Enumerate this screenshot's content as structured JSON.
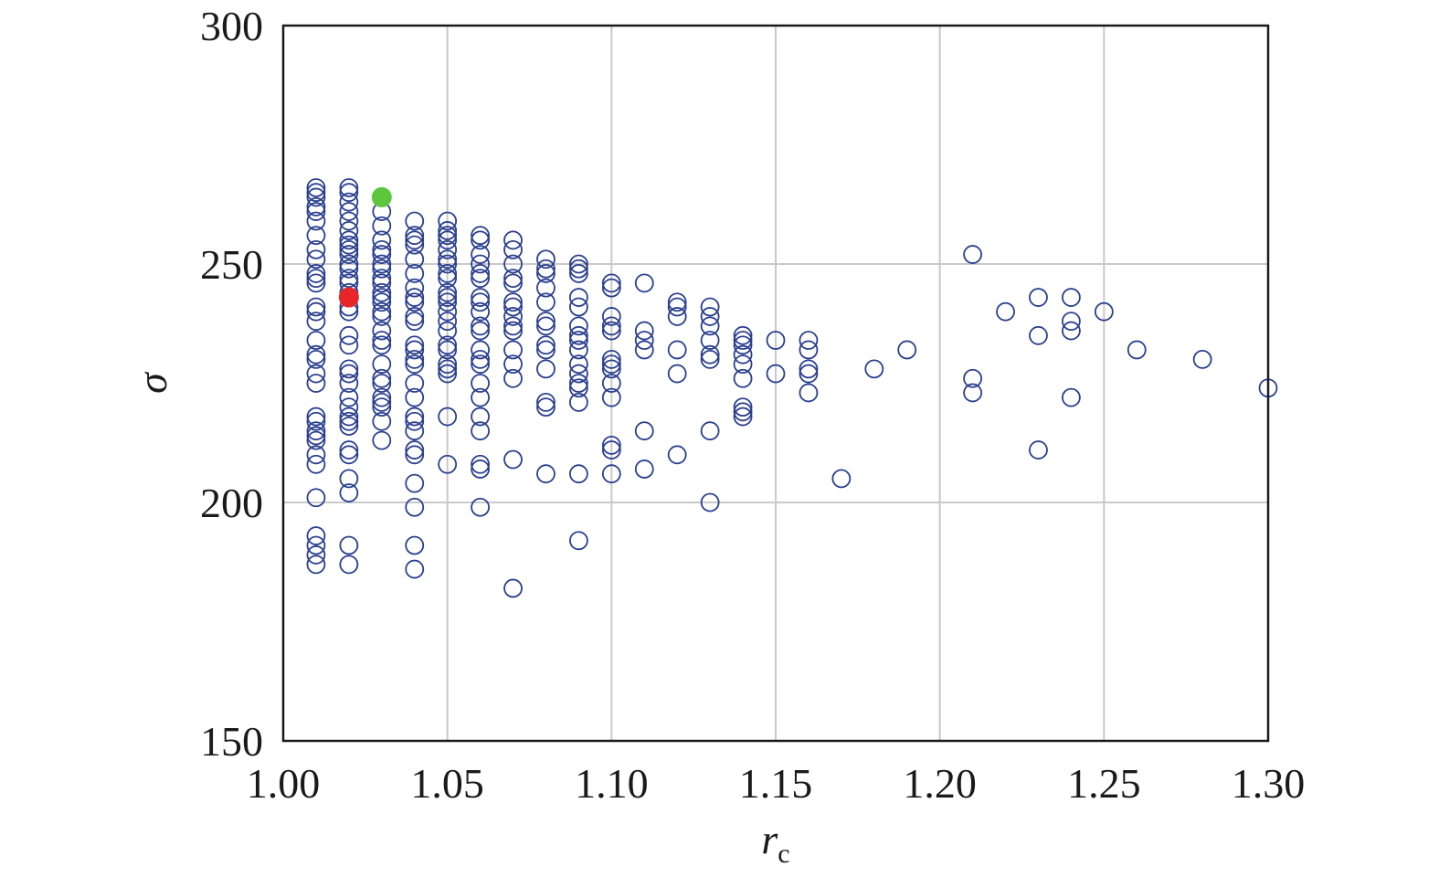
{
  "chart_data": {
    "type": "scatter",
    "title": "",
    "xlabel": "r",
    "xlabel_subscript": "c",
    "ylabel": "σ",
    "xlim": [
      1.0,
      1.3
    ],
    "ylim": [
      150,
      300
    ],
    "x_ticks": [
      "1.00",
      "1.05",
      "1.10",
      "1.15",
      "1.20",
      "1.25",
      "1.30"
    ],
    "y_ticks": [
      "150",
      "200",
      "250",
      "300"
    ],
    "grid": true,
    "legend": "none",
    "colors": {
      "points": "#2a3f8f",
      "highlight_red": "#e8262a",
      "highlight_green": "#5cc63c",
      "grid": "#c9c9c9",
      "axis": "#1a1a1a"
    },
    "series": [
      {
        "points": [
          [
            1.01,
            266
          ],
          [
            1.01,
            265
          ],
          [
            1.01,
            264
          ],
          [
            1.01,
            262
          ],
          [
            1.01,
            261
          ],
          [
            1.01,
            259
          ],
          [
            1.01,
            256
          ],
          [
            1.01,
            253
          ],
          [
            1.01,
            251
          ],
          [
            1.01,
            248
          ],
          [
            1.01,
            247
          ],
          [
            1.01,
            246
          ],
          [
            1.01,
            241
          ],
          [
            1.01,
            240
          ],
          [
            1.01,
            238
          ],
          [
            1.01,
            234
          ],
          [
            1.01,
            231
          ],
          [
            1.01,
            230
          ],
          [
            1.01,
            227
          ],
          [
            1.01,
            225
          ],
          [
            1.01,
            218
          ],
          [
            1.01,
            217
          ],
          [
            1.01,
            215
          ],
          [
            1.01,
            214
          ],
          [
            1.01,
            213
          ],
          [
            1.01,
            210
          ],
          [
            1.01,
            208
          ],
          [
            1.01,
            201
          ],
          [
            1.01,
            193
          ],
          [
            1.01,
            191
          ],
          [
            1.01,
            189
          ],
          [
            1.01,
            187
          ],
          [
            1.02,
            266
          ],
          [
            1.02,
            265
          ],
          [
            1.02,
            263
          ],
          [
            1.02,
            261
          ],
          [
            1.02,
            259
          ],
          [
            1.02,
            257
          ],
          [
            1.02,
            255
          ],
          [
            1.02,
            254
          ],
          [
            1.02,
            253
          ],
          [
            1.02,
            252
          ],
          [
            1.02,
            250
          ],
          [
            1.02,
            249
          ],
          [
            1.02,
            247
          ],
          [
            1.02,
            246
          ],
          [
            1.02,
            244
          ],
          [
            1.02,
            241
          ],
          [
            1.02,
            240
          ],
          [
            1.02,
            235
          ],
          [
            1.02,
            233
          ],
          [
            1.02,
            228
          ],
          [
            1.02,
            227
          ],
          [
            1.02,
            225
          ],
          [
            1.02,
            222
          ],
          [
            1.02,
            220
          ],
          [
            1.02,
            218
          ],
          [
            1.02,
            217
          ],
          [
            1.02,
            216
          ],
          [
            1.02,
            211
          ],
          [
            1.02,
            210
          ],
          [
            1.02,
            205
          ],
          [
            1.02,
            202
          ],
          [
            1.02,
            191
          ],
          [
            1.02,
            187
          ],
          [
            1.03,
            261
          ],
          [
            1.03,
            258
          ],
          [
            1.03,
            255
          ],
          [
            1.03,
            253
          ],
          [
            1.03,
            252
          ],
          [
            1.03,
            250
          ],
          [
            1.03,
            249
          ],
          [
            1.03,
            247
          ],
          [
            1.03,
            246
          ],
          [
            1.03,
            244
          ],
          [
            1.03,
            243
          ],
          [
            1.03,
            242
          ],
          [
            1.03,
            240
          ],
          [
            1.03,
            239
          ],
          [
            1.03,
            236
          ],
          [
            1.03,
            234
          ],
          [
            1.03,
            233
          ],
          [
            1.03,
            229
          ],
          [
            1.03,
            226
          ],
          [
            1.03,
            225
          ],
          [
            1.03,
            222
          ],
          [
            1.03,
            221
          ],
          [
            1.03,
            220
          ],
          [
            1.03,
            217
          ],
          [
            1.03,
            213
          ],
          [
            1.04,
            259
          ],
          [
            1.04,
            256
          ],
          [
            1.04,
            255
          ],
          [
            1.04,
            254
          ],
          [
            1.04,
            251
          ],
          [
            1.04,
            248
          ],
          [
            1.04,
            245
          ],
          [
            1.04,
            243
          ],
          [
            1.04,
            242
          ],
          [
            1.04,
            239
          ],
          [
            1.04,
            238
          ],
          [
            1.04,
            233
          ],
          [
            1.04,
            232
          ],
          [
            1.04,
            230
          ],
          [
            1.04,
            229
          ],
          [
            1.04,
            225
          ],
          [
            1.04,
            222
          ],
          [
            1.04,
            218
          ],
          [
            1.04,
            217
          ],
          [
            1.04,
            215
          ],
          [
            1.04,
            211
          ],
          [
            1.04,
            210
          ],
          [
            1.04,
            204
          ],
          [
            1.04,
            199
          ],
          [
            1.04,
            191
          ],
          [
            1.04,
            186
          ],
          [
            1.05,
            259
          ],
          [
            1.05,
            257
          ],
          [
            1.05,
            256
          ],
          [
            1.05,
            255
          ],
          [
            1.05,
            253
          ],
          [
            1.05,
            251
          ],
          [
            1.05,
            250
          ],
          [
            1.05,
            248
          ],
          [
            1.05,
            247
          ],
          [
            1.05,
            244
          ],
          [
            1.05,
            243
          ],
          [
            1.05,
            242
          ],
          [
            1.05,
            240
          ],
          [
            1.05,
            238
          ],
          [
            1.05,
            236
          ],
          [
            1.05,
            233
          ],
          [
            1.05,
            232
          ],
          [
            1.05,
            229
          ],
          [
            1.05,
            228
          ],
          [
            1.05,
            227
          ],
          [
            1.05,
            218
          ],
          [
            1.05,
            208
          ],
          [
            1.06,
            256
          ],
          [
            1.06,
            255
          ],
          [
            1.06,
            252
          ],
          [
            1.06,
            250
          ],
          [
            1.06,
            248
          ],
          [
            1.06,
            247
          ],
          [
            1.06,
            243
          ],
          [
            1.06,
            242
          ],
          [
            1.06,
            240
          ],
          [
            1.06,
            237
          ],
          [
            1.06,
            236
          ],
          [
            1.06,
            232
          ],
          [
            1.06,
            230
          ],
          [
            1.06,
            229
          ],
          [
            1.06,
            225
          ],
          [
            1.06,
            222
          ],
          [
            1.06,
            218
          ],
          [
            1.06,
            215
          ],
          [
            1.06,
            208
          ],
          [
            1.06,
            207
          ],
          [
            1.06,
            199
          ],
          [
            1.07,
            255
          ],
          [
            1.07,
            253
          ],
          [
            1.07,
            250
          ],
          [
            1.07,
            247
          ],
          [
            1.07,
            246
          ],
          [
            1.07,
            242
          ],
          [
            1.07,
            241
          ],
          [
            1.07,
            239
          ],
          [
            1.07,
            237
          ],
          [
            1.07,
            236
          ],
          [
            1.07,
            232
          ],
          [
            1.07,
            229
          ],
          [
            1.07,
            226
          ],
          [
            1.07,
            209
          ],
          [
            1.07,
            182
          ],
          [
            1.08,
            251
          ],
          [
            1.08,
            249
          ],
          [
            1.08,
            248
          ],
          [
            1.08,
            245
          ],
          [
            1.08,
            242
          ],
          [
            1.08,
            238
          ],
          [
            1.08,
            237
          ],
          [
            1.08,
            233
          ],
          [
            1.08,
            232
          ],
          [
            1.08,
            228
          ],
          [
            1.08,
            221
          ],
          [
            1.08,
            220
          ],
          [
            1.08,
            206
          ],
          [
            1.09,
            250
          ],
          [
            1.09,
            249
          ],
          [
            1.09,
            248
          ],
          [
            1.09,
            243
          ],
          [
            1.09,
            241
          ],
          [
            1.09,
            237
          ],
          [
            1.09,
            235
          ],
          [
            1.09,
            234
          ],
          [
            1.09,
            232
          ],
          [
            1.09,
            229
          ],
          [
            1.09,
            227
          ],
          [
            1.09,
            225
          ],
          [
            1.09,
            224
          ],
          [
            1.09,
            221
          ],
          [
            1.09,
            206
          ],
          [
            1.09,
            192
          ],
          [
            1.1,
            246
          ],
          [
            1.1,
            245
          ],
          [
            1.1,
            239
          ],
          [
            1.1,
            237
          ],
          [
            1.1,
            236
          ],
          [
            1.1,
            230
          ],
          [
            1.1,
            229
          ],
          [
            1.1,
            228
          ],
          [
            1.1,
            225
          ],
          [
            1.1,
            222
          ],
          [
            1.1,
            212
          ],
          [
            1.1,
            211
          ],
          [
            1.1,
            206
          ],
          [
            1.11,
            246
          ],
          [
            1.11,
            236
          ],
          [
            1.11,
            234
          ],
          [
            1.11,
            232
          ],
          [
            1.11,
            215
          ],
          [
            1.11,
            207
          ],
          [
            1.12,
            242
          ],
          [
            1.12,
            241
          ],
          [
            1.12,
            239
          ],
          [
            1.12,
            232
          ],
          [
            1.12,
            227
          ],
          [
            1.12,
            210
          ],
          [
            1.13,
            241
          ],
          [
            1.13,
            239
          ],
          [
            1.13,
            237
          ],
          [
            1.13,
            234
          ],
          [
            1.13,
            231
          ],
          [
            1.13,
            230
          ],
          [
            1.13,
            215
          ],
          [
            1.13,
            200
          ],
          [
            1.14,
            235
          ],
          [
            1.14,
            234
          ],
          [
            1.14,
            233
          ],
          [
            1.14,
            231
          ],
          [
            1.14,
            229
          ],
          [
            1.14,
            226
          ],
          [
            1.14,
            220
          ],
          [
            1.14,
            219
          ],
          [
            1.14,
            218
          ],
          [
            1.15,
            234
          ],
          [
            1.15,
            227
          ],
          [
            1.16,
            234
          ],
          [
            1.16,
            232
          ],
          [
            1.16,
            228
          ],
          [
            1.16,
            227
          ],
          [
            1.16,
            223
          ],
          [
            1.17,
            205
          ],
          [
            1.18,
            228
          ],
          [
            1.19,
            232
          ],
          [
            1.21,
            252
          ],
          [
            1.21,
            226
          ],
          [
            1.21,
            223
          ],
          [
            1.22,
            240
          ],
          [
            1.23,
            243
          ],
          [
            1.23,
            235
          ],
          [
            1.23,
            211
          ],
          [
            1.24,
            243
          ],
          [
            1.24,
            238
          ],
          [
            1.24,
            236
          ],
          [
            1.24,
            222
          ],
          [
            1.25,
            240
          ],
          [
            1.26,
            232
          ],
          [
            1.28,
            230
          ],
          [
            1.3,
            224
          ]
        ]
      }
    ],
    "highlights": [
      {
        "x": 1.02,
        "y": 243,
        "color": "red"
      },
      {
        "x": 1.03,
        "y": 264,
        "color": "green"
      }
    ]
  }
}
